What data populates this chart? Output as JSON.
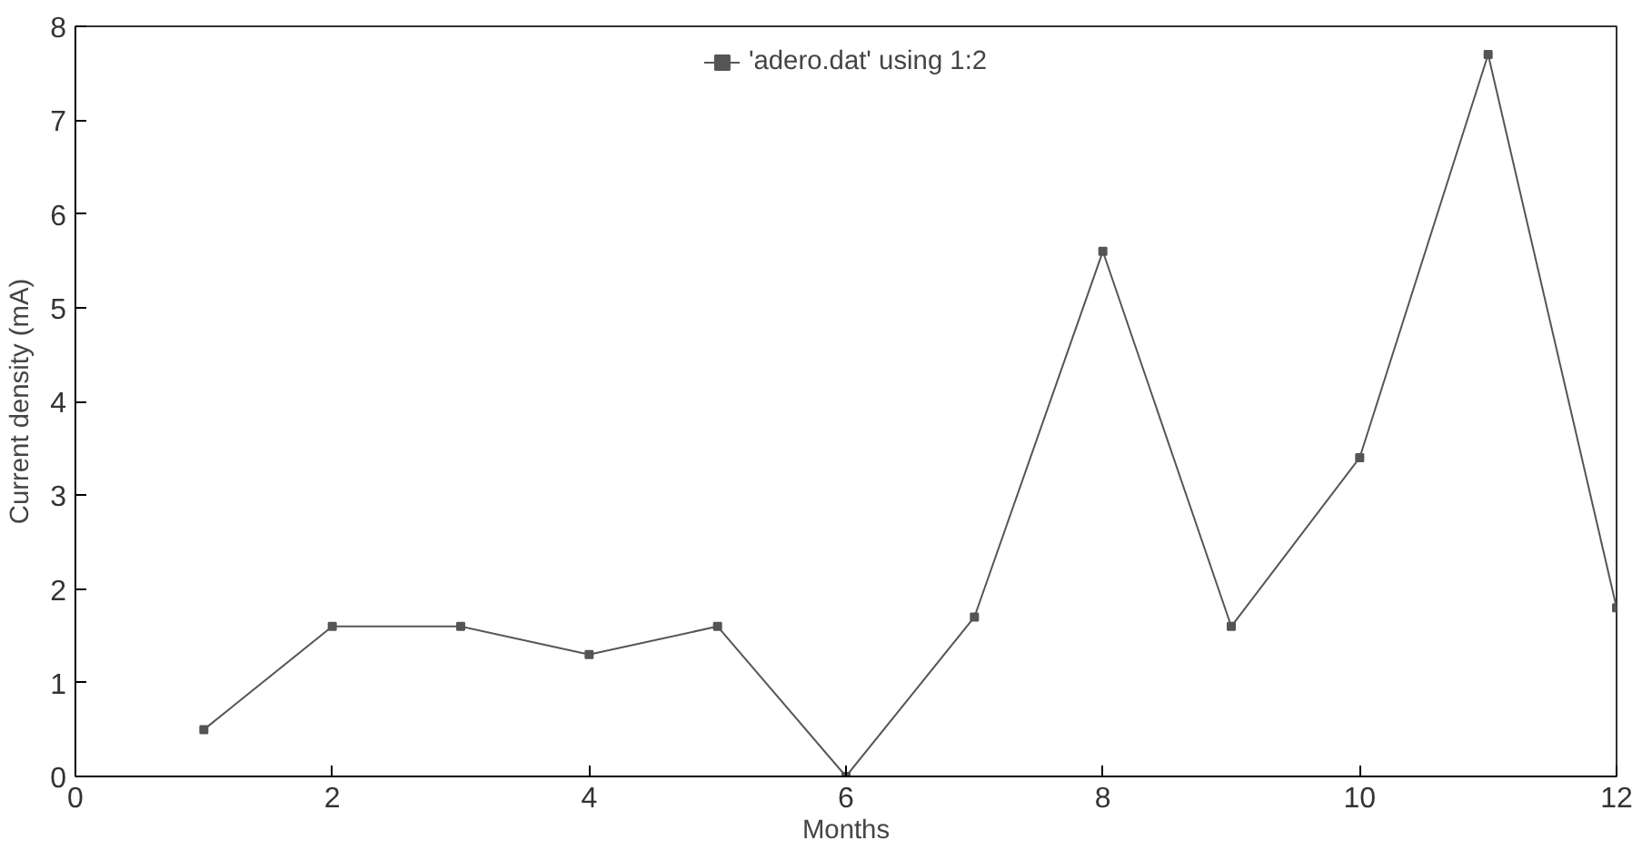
{
  "chart_data": {
    "type": "line",
    "xlabel": "Months",
    "ylabel": "Current density (mA)",
    "x": [
      1,
      2,
      3,
      4,
      5,
      6,
      7,
      8,
      9,
      10,
      11,
      12
    ],
    "series": [
      {
        "name": "'adero.dat' using 1:2",
        "color": "#555555",
        "values": [
          0.5,
          1.6,
          1.6,
          1.3,
          1.6,
          0,
          1.7,
          5.6,
          1.6,
          3.4,
          7.7,
          1.8
        ]
      }
    ],
    "xlim": [
      0,
      12
    ],
    "ylim": [
      0,
      8
    ],
    "xticks": [
      0,
      2,
      4,
      6,
      8,
      10,
      12
    ],
    "yticks": [
      0,
      1,
      2,
      3,
      4,
      5,
      6,
      7,
      8
    ],
    "grid": false,
    "legend": "top",
    "marker": "square",
    "line_style": "solid"
  }
}
